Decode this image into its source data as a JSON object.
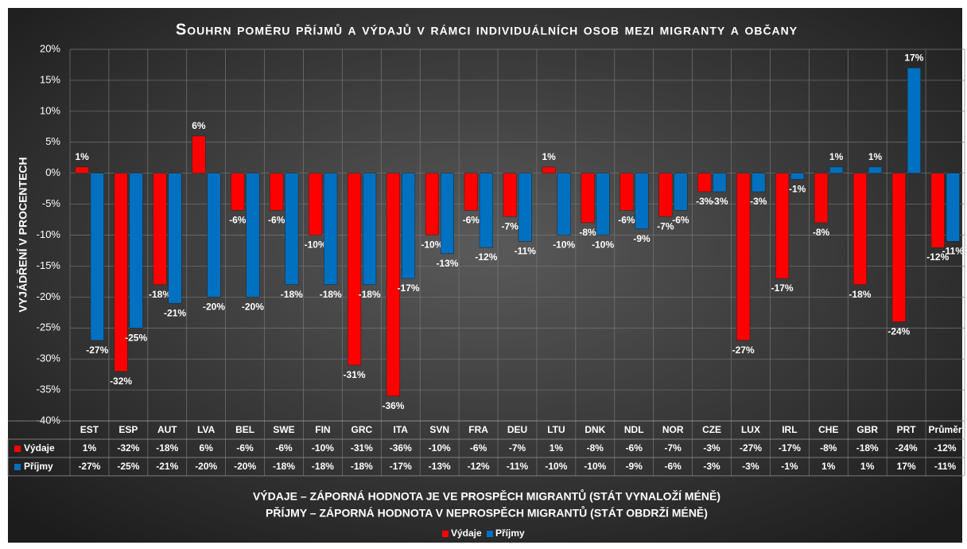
{
  "chart_data": {
    "type": "bar",
    "title": "Souhrn poměru příjmů a výdajů v rámci individuálních osob mezi migranty a občany",
    "y_label": "VYJÁDŘENÍ V PROCENTECH",
    "annotations": [
      "VÝDAJE – ZÁPORNÁ HODNOTA JE VE PROSPĚCH MIGRANTŮ (STÁT VYNALOŽÍ MÉNĚ)",
      "PŘÍJMY – ZÁPORNÁ HODNOTA V NEPROSPĚCH MIGRANTŮ (STÁT OBDRŽÍ MÉNĚ)"
    ],
    "categories": [
      "EST",
      "ESP",
      "AUT",
      "LVA",
      "BEL",
      "SWE",
      "FIN",
      "GRC",
      "ITA",
      "SVN",
      "FRA",
      "DEU",
      "LTU",
      "DNK",
      "NDL",
      "NOR",
      "CZE",
      "LUX",
      "IRL",
      "CHE",
      "GBR",
      "PRT",
      "Průměr"
    ],
    "series": [
      {
        "name": "Výdaje",
        "color": "#ff0000",
        "values": [
          1,
          -32,
          -18,
          6,
          -6,
          -6,
          -10,
          -31,
          -36,
          -10,
          -6,
          -7,
          1,
          -8,
          -6,
          -7,
          -3,
          -27,
          -17,
          -8,
          -18,
          -24,
          -12
        ],
        "value_labels": [
          "1%",
          "-32%",
          "-18%",
          "6%",
          "-6%",
          "-6%",
          "-10%",
          "-31%",
          "-36%",
          "-10%",
          "-6%",
          "-7%",
          "1%",
          "-8%",
          "-6%",
          "-7%",
          "-3%",
          "-27%",
          "-17%",
          "-8%",
          "-18%",
          "-24%",
          "-12%"
        ]
      },
      {
        "name": "Příjmy",
        "color": "#0070c0",
        "values": [
          -27,
          -25,
          -21,
          -20,
          -20,
          -18,
          -18,
          -18,
          -17,
          -13,
          -12,
          -11,
          -10,
          -10,
          -9,
          -6,
          -3,
          -3,
          -1,
          1,
          1,
          17,
          -11
        ],
        "value_labels": [
          "-27%",
          "-25%",
          "-21%",
          "-20%",
          "-20%",
          "-18%",
          "-18%",
          "-18%",
          "-17%",
          "-13%",
          "-12%",
          "-11%",
          "-10%",
          "-10%",
          "-9%",
          "-6%",
          "-3%",
          "-3%",
          "-1%",
          "1%",
          "1%",
          "17%",
          "-11%"
        ]
      }
    ],
    "ylim": [
      -40,
      20
    ],
    "yticks": [
      {
        "value": -40,
        "label": "-40%"
      },
      {
        "value": -35,
        "label": "-35%"
      },
      {
        "value": -30,
        "label": "-30%"
      },
      {
        "value": -25,
        "label": "-25%"
      },
      {
        "value": -20,
        "label": "-20%"
      },
      {
        "value": -15,
        "label": "-15%"
      },
      {
        "value": -10,
        "label": "-10%"
      },
      {
        "value": -5,
        "label": "-5%"
      },
      {
        "value": 0,
        "label": "0%"
      },
      {
        "value": 5,
        "label": "5%"
      },
      {
        "value": 10,
        "label": "10%"
      },
      {
        "value": 15,
        "label": "15%"
      },
      {
        "value": 20,
        "label": "20%"
      }
    ],
    "grid": true,
    "legend": "bottom"
  }
}
